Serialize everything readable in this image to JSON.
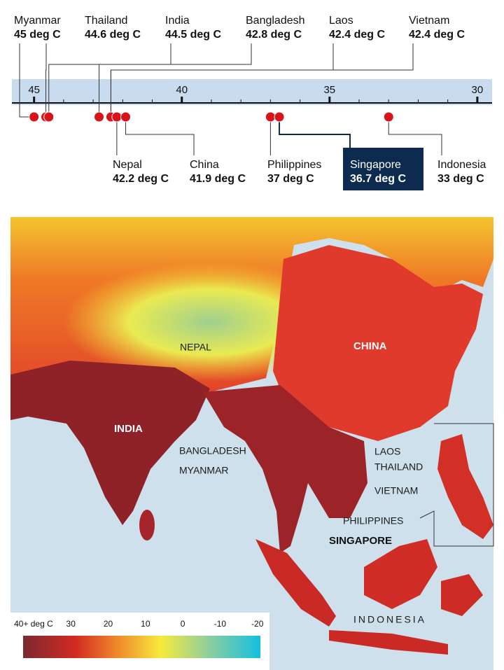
{
  "chart_data": {
    "type": "dot",
    "categories": [
      "Myanmar",
      "Thailand",
      "India",
      "Bangladesh",
      "Laos",
      "Vietnam",
      "Nepal",
      "China",
      "Philippines",
      "Singapore",
      "Indonesia"
    ],
    "values": [
      45,
      44.6,
      44.5,
      42.8,
      42.4,
      42.4,
      42.2,
      41.9,
      37,
      36.7,
      33
    ],
    "value_labels": [
      "45 deg C",
      "44.6 deg C",
      "44.5 deg C",
      "42.8 deg C",
      "42.4 deg C",
      "42.4 deg C",
      "42.2 deg C",
      "41.9 deg C",
      "37 deg C",
      "36.7 deg C",
      "33 deg C"
    ],
    "color": "#d7141a",
    "highlight": "Singapore",
    "xlim": [
      45.75,
      29.5
    ],
    "xticks": [
      45,
      40,
      35,
      30
    ],
    "minor_xticks": [
      44,
      43,
      42,
      41,
      39,
      38,
      37,
      36,
      34,
      33,
      32,
      31
    ]
  },
  "map": {
    "labels": [
      "NEPAL",
      "CHINA",
      "INDIA",
      "BANGLADESH",
      "MYANMAR",
      "LAOS",
      "THAILAND",
      "VIETNAM",
      "PHILIPPINES",
      "SINGAPORE",
      "INDONESIA"
    ],
    "legend": {
      "lim": [
        42.8,
        -20.8
      ],
      "ticks": [
        {
          "value": 40,
          "label": "40+ deg C"
        },
        30,
        20,
        10,
        0,
        -10,
        -20
      ]
    }
  }
}
